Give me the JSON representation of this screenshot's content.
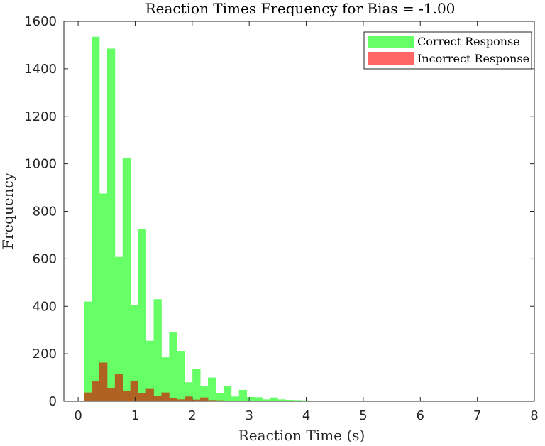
{
  "chart_data": {
    "type": "bar",
    "title": "Reaction Times Frequency for Bias = -1.00",
    "xlabel": "Reaction Time (s)",
    "ylabel": "Frequency",
    "xlim": [
      -0.25,
      8.0
    ],
    "ylim": [
      0,
      1600
    ],
    "xticks": [
      0,
      1,
      2,
      3,
      4,
      5,
      6,
      7,
      8
    ],
    "yticks": [
      0,
      200,
      400,
      600,
      800,
      1000,
      1200,
      1400,
      1600
    ],
    "grid": false,
    "legend_position": "top-right",
    "bin_width": 0.136,
    "bin_start": 0.1,
    "series": [
      {
        "name": "Correct Response",
        "color": "#66ff66",
        "values": [
          420,
          1535,
          875,
          1485,
          608,
          1025,
          405,
          725,
          255,
          430,
          185,
          290,
          212,
          80,
          137,
          65,
          100,
          35,
          65,
          20,
          48,
          18,
          17,
          8,
          16,
          8,
          6,
          5,
          4,
          3,
          3,
          3,
          2,
          2,
          2,
          2,
          1,
          1,
          1,
          1,
          1,
          1,
          1,
          1,
          1,
          1,
          1,
          1,
          1,
          1
        ]
      },
      {
        "name": "Incorrect Response",
        "color": "#ff6666",
        "values": [
          37,
          85,
          163,
          57,
          115,
          43,
          87,
          33,
          52,
          22,
          37,
          15,
          8,
          20,
          7,
          16,
          5,
          4,
          3,
          2,
          2,
          1,
          1,
          1,
          1,
          1,
          1,
          1,
          1,
          1,
          1,
          1,
          1,
          1,
          1,
          1,
          1,
          1,
          1,
          1,
          1,
          1,
          1,
          1,
          1,
          1,
          1,
          1,
          1,
          1
        ]
      }
    ]
  }
}
